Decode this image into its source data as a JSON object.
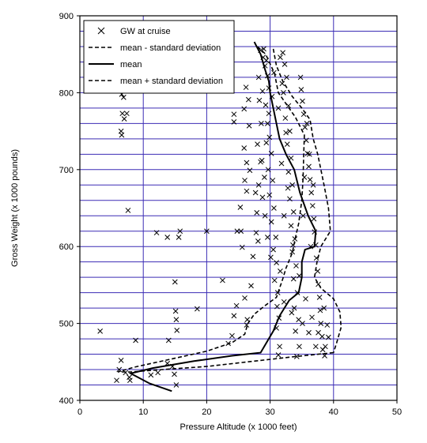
{
  "chart_data": {
    "type": "scatter",
    "xlabel": "Pressure Altitude (x 1000 feet)",
    "ylabel": "Gross Weight (x 1000 pounds)",
    "xlim": [
      0,
      50
    ],
    "ylim": [
      400,
      900
    ],
    "x_ticks": [
      "0",
      "10",
      "20",
      "30",
      "40",
      "50"
    ],
    "y_ticks": [
      "400",
      "500",
      "600",
      "700",
      "800",
      "900"
    ],
    "grid": true,
    "legend_position": "top-left",
    "legend": [
      {
        "label": "GW at cruise",
        "style": "marker-x"
      },
      {
        "label": "mean - standard deviation",
        "style": "dashed"
      },
      {
        "label": "mean",
        "style": "solid"
      },
      {
        "label": "mean + standard deviation",
        "style": "dashed"
      }
    ],
    "series": [
      {
        "name": "GW at cruise",
        "style": "marker-x",
        "points": [
          [
            3.2,
            490
          ],
          [
            5.8,
            426
          ],
          [
            6.2,
            440
          ],
          [
            6.5,
            452
          ],
          [
            7.2,
            436
          ],
          [
            7.8,
            430
          ],
          [
            7.9,
            426
          ],
          [
            8.8,
            478
          ],
          [
            11.2,
            433
          ],
          [
            12.3,
            436
          ],
          [
            13.8,
            448
          ],
          [
            14.0,
            478
          ],
          [
            14.6,
            444
          ],
          [
            14.9,
            434
          ],
          [
            15.2,
            420
          ],
          [
            15.0,
            554
          ],
          [
            15.1,
            516
          ],
          [
            15.2,
            505
          ],
          [
            15.3,
            491
          ],
          [
            6.6,
            745
          ],
          [
            6.5,
            750
          ],
          [
            7.0,
            766
          ],
          [
            6.7,
            773
          ],
          [
            7.4,
            773
          ],
          [
            6.9,
            794
          ],
          [
            6.6,
            798
          ],
          [
            7.6,
            647
          ],
          [
            12.1,
            618
          ],
          [
            13.8,
            612
          ],
          [
            15.6,
            612
          ],
          [
            15.8,
            620
          ],
          [
            20.0,
            620
          ],
          [
            18.5,
            519
          ],
          [
            22.5,
            556
          ],
          [
            23.4,
            474
          ],
          [
            24.0,
            484
          ],
          [
            24.3,
            510
          ],
          [
            24.7,
            523
          ],
          [
            24.3,
            762
          ],
          [
            24.3,
            772
          ],
          [
            24.8,
            620
          ],
          [
            25.4,
            620
          ],
          [
            25.6,
            599
          ],
          [
            25.3,
            651
          ],
          [
            26.3,
            709
          ],
          [
            26.0,
            686
          ],
          [
            26.3,
            672
          ],
          [
            25.9,
            728
          ],
          [
            26.8,
            699
          ],
          [
            26.2,
            807
          ],
          [
            26.6,
            791
          ],
          [
            25.9,
            779
          ],
          [
            26.7,
            757
          ],
          [
            26.0,
            533
          ],
          [
            26.3,
            498
          ],
          [
            26.4,
            505
          ],
          [
            27.0,
            549
          ],
          [
            27.3,
            587
          ],
          [
            27.8,
            618
          ],
          [
            27.9,
            644
          ],
          [
            28.1,
            607
          ],
          [
            27.7,
            670
          ],
          [
            28.2,
            680
          ],
          [
            28.5,
            710
          ],
          [
            28.0,
            733
          ],
          [
            28.6,
            760
          ],
          [
            28.3,
            790
          ],
          [
            28.8,
            802
          ],
          [
            28.2,
            820
          ],
          [
            28.9,
            846
          ],
          [
            29.2,
            835
          ],
          [
            28.5,
            855
          ],
          [
            29.0,
            857
          ],
          [
            29.4,
            842
          ],
          [
            29.6,
            822
          ],
          [
            29.8,
            806
          ],
          [
            29.3,
            784
          ],
          [
            29.6,
            760
          ],
          [
            29.9,
            742
          ],
          [
            30.2,
            721
          ],
          [
            29.7,
            700
          ],
          [
            30.4,
            686
          ],
          [
            29.9,
            667
          ],
          [
            30.6,
            650
          ],
          [
            30.2,
            632
          ],
          [
            30.9,
            612
          ],
          [
            30.5,
            596
          ],
          [
            31.0,
            579
          ],
          [
            30.7,
            556
          ],
          [
            31.2,
            540
          ],
          [
            31.1,
            522
          ],
          [
            31.4,
            507
          ],
          [
            31.0,
            494
          ],
          [
            31.5,
            470
          ],
          [
            31.3,
            459
          ],
          [
            32.0,
            852
          ],
          [
            32.3,
            837
          ],
          [
            32.6,
            820
          ],
          [
            32.1,
            800
          ],
          [
            32.9,
            783
          ],
          [
            32.4,
            767
          ],
          [
            33.1,
            750
          ],
          [
            32.7,
            733
          ],
          [
            33.3,
            715
          ],
          [
            32.9,
            697
          ],
          [
            33.5,
            680
          ],
          [
            33.1,
            662
          ],
          [
            33.7,
            645
          ],
          [
            33.3,
            627
          ],
          [
            33.9,
            610
          ],
          [
            33.5,
            593
          ],
          [
            34.1,
            575
          ],
          [
            33.7,
            558
          ],
          [
            34.3,
            540
          ],
          [
            33.8,
            520
          ],
          [
            34.5,
            505
          ],
          [
            34.0,
            490
          ],
          [
            34.6,
            470
          ],
          [
            34.2,
            457
          ],
          [
            34.8,
            820
          ],
          [
            34.9,
            804
          ],
          [
            35.1,
            789
          ],
          [
            35.3,
            772
          ],
          [
            35.5,
            755
          ],
          [
            35.7,
            738
          ],
          [
            35.9,
            721
          ],
          [
            36.1,
            704
          ],
          [
            36.3,
            687
          ],
          [
            36.5,
            670
          ],
          [
            36.7,
            653
          ],
          [
            36.9,
            636
          ],
          [
            37.0,
            619
          ],
          [
            37.2,
            602
          ],
          [
            37.3,
            585
          ],
          [
            37.5,
            568
          ],
          [
            37.6,
            551
          ],
          [
            37.8,
            534
          ],
          [
            37.9,
            517
          ],
          [
            38.0,
            500
          ],
          [
            38.2,
            483
          ],
          [
            38.3,
            466
          ],
          [
            35.8,
            760
          ],
          [
            36.2,
            720
          ],
          [
            35.4,
            690
          ],
          [
            36.8,
            680
          ],
          [
            35.2,
            640
          ],
          [
            36.4,
            600
          ],
          [
            38.5,
            520
          ],
          [
            39.0,
            498
          ],
          [
            39.2,
            482
          ],
          [
            38.7,
            470
          ],
          [
            37.2,
            470
          ],
          [
            36.1,
            488
          ],
          [
            35.1,
            500
          ],
          [
            33.4,
            514
          ],
          [
            32.2,
            528
          ],
          [
            31.6,
            568
          ],
          [
            30.1,
            586
          ],
          [
            29.6,
            612
          ],
          [
            29.2,
            640
          ],
          [
            28.8,
            664
          ],
          [
            29.1,
            690
          ],
          [
            28.7,
            712
          ],
          [
            29.4,
            735
          ],
          [
            29.8,
            773
          ],
          [
            30.3,
            795
          ],
          [
            30.6,
            826
          ],
          [
            31.6,
            846
          ],
          [
            31.9,
            812
          ],
          [
            31.3,
            780
          ],
          [
            32.5,
            748
          ],
          [
            31.8,
            708
          ],
          [
            32.8,
            676
          ],
          [
            32.2,
            640
          ],
          [
            33.6,
            602
          ],
          [
            34.6,
            562
          ],
          [
            35.6,
            532
          ],
          [
            36.6,
            508
          ],
          [
            37.6,
            488
          ],
          [
            38.6,
            458
          ]
        ]
      },
      {
        "name": "mean - standard deviation",
        "style": "dashed",
        "points": [
          [
            40.0,
            462
          ],
          [
            34.0,
            457
          ],
          [
            28.5,
            452
          ],
          [
            20.0,
            444
          ],
          [
            13.0,
            440
          ],
          [
            8.0,
            437
          ],
          [
            6.0,
            437
          ],
          [
            8.5,
            443
          ],
          [
            14.0,
            453
          ],
          [
            20.0,
            464
          ],
          [
            24.0,
            475
          ],
          [
            26.0,
            486
          ],
          [
            26.5,
            500
          ],
          [
            27.5,
            512
          ],
          [
            29.0,
            522
          ],
          [
            31.0,
            534
          ],
          [
            31.5,
            546
          ],
          [
            32.0,
            558
          ],
          [
            32.5,
            572
          ],
          [
            33.5,
            592
          ],
          [
            34.0,
            612
          ],
          [
            34.5,
            630
          ],
          [
            35.0,
            660
          ],
          [
            35.2,
            690
          ],
          [
            35.3,
            720
          ],
          [
            35.4,
            745
          ],
          [
            34.0,
            768
          ],
          [
            31.3,
            800
          ],
          [
            30.7,
            825
          ],
          [
            29.3,
            850
          ],
          [
            28.0,
            860
          ]
        ]
      },
      {
        "name": "mean",
        "style": "solid",
        "points": [
          [
            14.5,
            412
          ],
          [
            11.0,
            422
          ],
          [
            8.0,
            435
          ],
          [
            11.5,
            442
          ],
          [
            18.0,
            451
          ],
          [
            24.0,
            458
          ],
          [
            28.5,
            462
          ],
          [
            30.5,
            490
          ],
          [
            31.5,
            510
          ],
          [
            33.0,
            530
          ],
          [
            34.5,
            540
          ],
          [
            35.0,
            560
          ],
          [
            35.0,
            580
          ],
          [
            35.5,
            596
          ],
          [
            37.0,
            600
          ],
          [
            37.2,
            620
          ],
          [
            36.0,
            640
          ],
          [
            34.7,
            670
          ],
          [
            33.8,
            700
          ],
          [
            32.5,
            720
          ],
          [
            31.5,
            740
          ],
          [
            31.0,
            760
          ],
          [
            30.5,
            780
          ],
          [
            30.0,
            800
          ],
          [
            29.8,
            815
          ],
          [
            29.2,
            830
          ],
          [
            28.5,
            850
          ],
          [
            27.5,
            866
          ]
        ]
      },
      {
        "name": "mean + standard deviation",
        "style": "dashed",
        "points": [
          [
            30.5,
            857
          ],
          [
            31.0,
            835
          ],
          [
            32.0,
            815
          ],
          [
            33.5,
            795
          ],
          [
            35.0,
            780
          ],
          [
            36.3,
            765
          ],
          [
            36.8,
            740
          ],
          [
            37.5,
            720
          ],
          [
            38.0,
            700
          ],
          [
            38.5,
            680
          ],
          [
            39.2,
            650
          ],
          [
            39.5,
            620
          ],
          [
            38.0,
            600
          ],
          [
            37.4,
            580
          ],
          [
            37.0,
            560
          ],
          [
            38.0,
            546
          ],
          [
            40.0,
            532
          ],
          [
            41.0,
            515
          ],
          [
            41.2,
            495
          ],
          [
            40.5,
            475
          ],
          [
            40.0,
            462
          ]
        ]
      }
    ]
  }
}
